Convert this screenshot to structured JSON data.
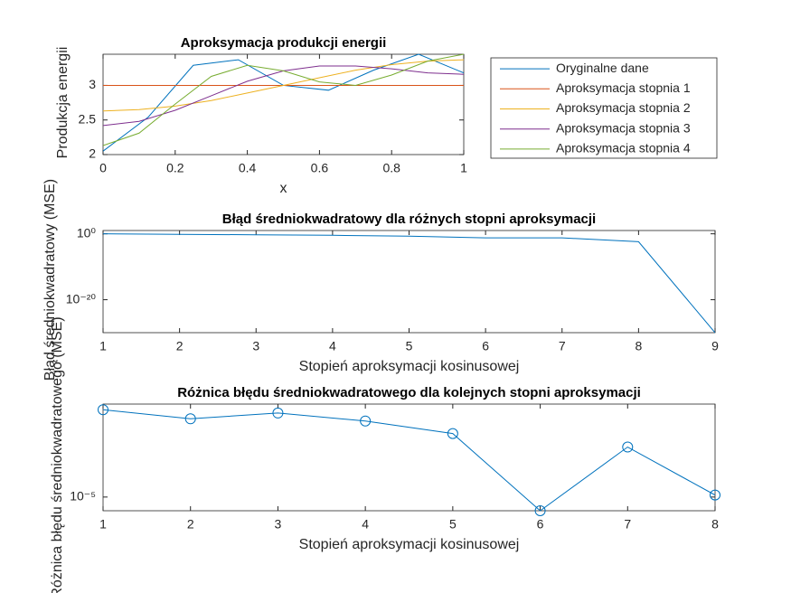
{
  "chart_data": [
    {
      "type": "line",
      "title": "Aproksymacja produkcji energii",
      "xlabel": "x",
      "ylabel": "Produkcja energii",
      "xlim": [
        0,
        1
      ],
      "ylim": [
        2,
        3.45
      ],
      "xticks": [
        0,
        0.2,
        0.4,
        0.6,
        0.8,
        1
      ],
      "yticks": [
        2,
        2.5,
        3
      ],
      "legend": "northeastoutside",
      "series": [
        {
          "name": "Oryginalne dane",
          "color": "#0072BD",
          "x": [
            0,
            0.125,
            0.25,
            0.375,
            0.5,
            0.625,
            0.75,
            0.875,
            1
          ],
          "values": [
            2.05,
            2.54,
            3.29,
            3.37,
            3.0,
            2.93,
            3.22,
            3.45,
            3.18
          ]
        },
        {
          "name": "Aproksymacja stopnia 1",
          "color": "#D95319",
          "x": [
            0,
            1
          ],
          "values": [
            3.0,
            3.0
          ]
        },
        {
          "name": "Aproksymacja stopnia 2",
          "color": "#EDB120",
          "x": [
            0,
            0.1,
            0.2,
            0.3,
            0.4,
            0.5,
            0.6,
            0.7,
            0.8,
            0.9,
            1
          ],
          "values": [
            2.63,
            2.65,
            2.7,
            2.78,
            2.89,
            3.0,
            3.11,
            3.22,
            3.3,
            3.35,
            3.37
          ]
        },
        {
          "name": "Aproksymacja stopnia 3",
          "color": "#7E2F8E",
          "x": [
            0,
            0.1,
            0.2,
            0.3,
            0.4,
            0.5,
            0.6,
            0.7,
            0.8,
            0.9,
            1
          ],
          "values": [
            2.42,
            2.48,
            2.64,
            2.85,
            3.06,
            3.21,
            3.28,
            3.28,
            3.24,
            3.18,
            3.16
          ]
        },
        {
          "name": "Aproksymacja stopnia 4",
          "color": "#77AC30",
          "x": [
            0,
            0.1,
            0.2,
            0.3,
            0.4,
            0.5,
            0.6,
            0.7,
            0.8,
            0.9,
            1
          ],
          "values": [
            2.13,
            2.31,
            2.73,
            3.13,
            3.29,
            3.21,
            3.05,
            3.0,
            3.15,
            3.35,
            3.45
          ]
        }
      ]
    },
    {
      "type": "line",
      "title": "Błąd średniokwadratowy dla różnych stopni aproksymacji",
      "xlabel": "Stopień aproksymacji kosinusowej",
      "ylabel": "Błąd średniokwadratowy (MSE)",
      "log_y": true,
      "xlim": [
        1,
        9
      ],
      "ylim": [
        1e-30,
        10
      ],
      "xticks": [
        1,
        2,
        3,
        4,
        5,
        6,
        7,
        8,
        9
      ],
      "yticks": [
        {
          "value": 1,
          "label": "10⁰"
        },
        {
          "value": 1e-20,
          "label": "10⁻²⁰"
        }
      ],
      "series": [
        {
          "color": "#0072BD",
          "x": [
            1,
            2,
            3,
            4,
            5,
            6,
            7,
            8,
            9
          ],
          "values": [
            1,
            0.7,
            0.5,
            0.35,
            0.2,
            0.06,
            0.06,
            0.004,
            1e-30
          ]
        }
      ]
    },
    {
      "type": "line",
      "title": "Różnica błędu średniokwadratowego dla kolejnych stopni aproksymacji",
      "xlabel": "Stopień aproksymacji kosinusowej",
      "ylabel": "Różnica błędu średniokwadratowego (MSE)",
      "log_y": true,
      "xlim": [
        1,
        8
      ],
      "ylim": [
        6.3e-06,
        0.00023
      ],
      "xticks": [
        1,
        2,
        3,
        4,
        5,
        6,
        7,
        8
      ],
      "yticks": [
        {
          "value": 1e-05,
          "label": "10⁻⁵"
        }
      ],
      "marker": "o",
      "series": [
        {
          "color": "#0072BD",
          "x": [
            1,
            2,
            3,
            4,
            5,
            6,
            7,
            8
          ],
          "values": [
            0.00019,
            0.00014,
            0.00017,
            0.00013,
            8.5e-05,
            6.3e-06,
            5.4e-05,
            1.07e-05
          ]
        }
      ]
    }
  ]
}
